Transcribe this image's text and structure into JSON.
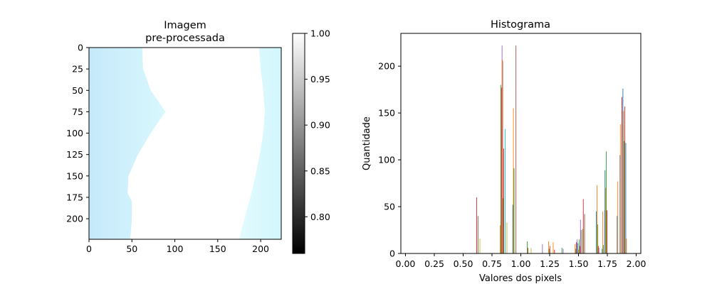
{
  "chart_data": [
    {
      "type": "heatmap",
      "title_lines": [
        "Imagem",
        "pre-processada"
      ],
      "xlim": [
        0,
        224
      ],
      "ylim": [
        224,
        0
      ],
      "xticks": [
        0,
        50,
        100,
        150,
        200
      ],
      "yticks": [
        0,
        25,
        50,
        75,
        100,
        125,
        150,
        175,
        200
      ],
      "left_boundary": [
        [
          0,
          62
        ],
        [
          25,
          63
        ],
        [
          50,
          72
        ],
        [
          75,
          89
        ],
        [
          100,
          72
        ],
        [
          125,
          57
        ],
        [
          150,
          46
        ],
        [
          170,
          45
        ],
        [
          180,
          50
        ],
        [
          200,
          50
        ],
        [
          224,
          48
        ]
      ],
      "right_boundary": [
        [
          0,
          198
        ],
        [
          25,
          200
        ],
        [
          50,
          203
        ],
        [
          75,
          205
        ],
        [
          100,
          203
        ],
        [
          125,
          199
        ],
        [
          150,
          194
        ],
        [
          175,
          188
        ],
        [
          200,
          181
        ],
        [
          224,
          175
        ]
      ],
      "colors": {
        "tint_edge": "#c6e9fb",
        "tint_mid": "#d8f8fd",
        "clear": "#ffffff"
      },
      "colorbar": {
        "range": [
          0.76,
          1.0
        ],
        "ticks": [
          "1.00",
          "0.95",
          "0.90",
          "0.85",
          "0.80"
        ],
        "tick_values": [
          1.0,
          0.95,
          0.9,
          0.85,
          0.8
        ],
        "colors": {
          "low": "#000000",
          "high": "#ffffff"
        }
      }
    },
    {
      "type": "bar",
      "title": "Histograma",
      "xlabel": "Valores dos pixels",
      "ylabel": "Quantidade",
      "xlim": [
        -0.04,
        2.04
      ],
      "ylim": [
        0,
        235
      ],
      "xticks": [
        "0.00",
        "0.25",
        "0.50",
        "0.75",
        "1.00",
        "1.25",
        "1.50",
        "1.75",
        "2.00"
      ],
      "xtick_values": [
        0,
        0.25,
        0.5,
        0.75,
        1.0,
        1.25,
        1.5,
        1.75,
        2.0
      ],
      "yticks": [
        "0",
        "50",
        "100",
        "150",
        "200"
      ],
      "ytick_values": [
        0,
        50,
        100,
        150,
        200
      ],
      "series_colors": [
        "#1f77b4",
        "#ff7f0e",
        "#2ca02c",
        "#d62728",
        "#9467bd",
        "#8c564b",
        "#e377c2",
        "#7f7f7f",
        "#bcbd22",
        "#17becf"
      ],
      "bars": [
        {
          "x": 0.626,
          "values": [
            0,
            0,
            0,
            60,
            0,
            40,
            0,
            0,
            16,
            0
          ]
        },
        {
          "x": 0.84,
          "values": [
            0,
            30,
            180,
            177,
            222,
            205,
            0,
            0,
            0,
            133
          ]
        },
        {
          "x": 0.86,
          "values": [
            0,
            207,
            59,
            112,
            0,
            0,
            0,
            0,
            33,
            0
          ]
        },
        {
          "x": 0.955,
          "values": [
            52,
            155,
            91,
            0,
            0,
            222,
            0,
            0,
            0,
            0
          ]
        },
        {
          "x": 1.07,
          "values": [
            0,
            0,
            13,
            6,
            0,
            0,
            0,
            0,
            6,
            0
          ]
        },
        {
          "x": 1.19,
          "values": [
            0,
            0,
            0,
            0,
            10,
            0,
            0,
            0,
            0,
            0
          ]
        },
        {
          "x": 1.26,
          "values": [
            0,
            13,
            5,
            8,
            0,
            0,
            0,
            0,
            0,
            0
          ]
        },
        {
          "x": 1.3,
          "values": [
            0,
            12,
            0,
            4,
            0,
            0,
            0,
            0,
            0,
            0
          ]
        },
        {
          "x": 1.37,
          "values": [
            0,
            0,
            6,
            0,
            5,
            0,
            0,
            0,
            0,
            0
          ]
        },
        {
          "x": 1.49,
          "values": [
            0,
            10,
            5,
            12,
            15,
            0,
            0,
            0,
            0,
            0
          ]
        },
        {
          "x": 1.52,
          "values": [
            11,
            4,
            15,
            8,
            36,
            25,
            0,
            0,
            0,
            0
          ]
        },
        {
          "x": 1.55,
          "values": [
            0,
            0,
            26,
            58,
            0,
            42,
            0,
            0,
            0,
            0
          ]
        },
        {
          "x": 1.68,
          "values": [
            45,
            73,
            31,
            8,
            6,
            0,
            0,
            0,
            0,
            0
          ]
        },
        {
          "x": 1.73,
          "values": [
            5,
            45,
            9,
            0,
            46,
            0,
            0,
            0,
            0,
            0
          ]
        },
        {
          "x": 1.755,
          "values": [
            89,
            70,
            109,
            46,
            0,
            0,
            0,
            0,
            0,
            0
          ]
        },
        {
          "x": 1.86,
          "values": [
            40,
            77,
            0,
            0,
            0,
            0,
            0,
            0,
            0,
            0
          ]
        },
        {
          "x": 1.885,
          "values": [
            105,
            138,
            0,
            167,
            0,
            0,
            0,
            0,
            0,
            0
          ]
        },
        {
          "x": 1.91,
          "values": [
            176,
            152,
            120,
            157,
            0,
            0,
            0,
            0,
            0,
            0
          ]
        },
        {
          "x": 1.935,
          "values": [
            118,
            16,
            0,
            0,
            0,
            0,
            0,
            0,
            0,
            0
          ]
        }
      ]
    }
  ]
}
